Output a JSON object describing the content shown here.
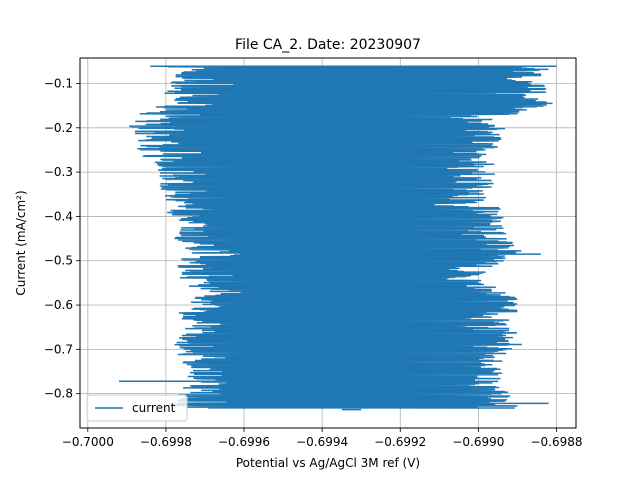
{
  "chart_data": {
    "type": "line",
    "title": "File CA_2. Date: 20230907",
    "xlabel": "Potential vs Ag/AgCl 3M ref (V)",
    "ylabel": "Current (mA/cm²)",
    "xlim": [
      -0.70002,
      -0.69875
    ],
    "ylim": [
      -0.8775,
      -0.0425
    ],
    "xticks": [
      -0.7,
      -0.6998,
      -0.6996,
      -0.6994,
      -0.6992,
      -0.699,
      -0.6988
    ],
    "xtick_labels": [
      "−0.7000",
      "−0.6998",
      "−0.6996",
      "−0.6994",
      "−0.6992",
      "−0.6990",
      "−0.6988"
    ],
    "yticks": [
      -0.1,
      -0.2,
      -0.3,
      -0.4,
      -0.5,
      -0.6,
      -0.7,
      -0.8
    ],
    "ytick_labels": [
      "−0.1",
      "−0.2",
      "−0.3",
      "−0.4",
      "−0.5",
      "−0.6",
      "−0.7",
      "−0.8"
    ],
    "grid": true,
    "legend_position": "lower-left",
    "series": [
      {
        "name": "current",
        "color": "#1f77b4",
        "envelope": [
          {
            "y": -0.061,
            "left": -0.69984,
            "right": -0.6988
          },
          {
            "y": -0.09,
            "left": -0.6998,
            "right": -0.69884
          },
          {
            "y": -0.12,
            "left": -0.69981,
            "right": -0.69882
          },
          {
            "y": -0.15,
            "left": -0.69982,
            "right": -0.69882
          },
          {
            "y": -0.18,
            "left": -0.6999,
            "right": -0.69895
          },
          {
            "y": -0.21,
            "left": -0.69989,
            "right": -0.69892
          },
          {
            "y": -0.24,
            "left": -0.69988,
            "right": -0.69895
          },
          {
            "y": -0.27,
            "left": -0.69986,
            "right": -0.69895
          },
          {
            "y": -0.3,
            "left": -0.69982,
            "right": -0.69895
          },
          {
            "y": -0.33,
            "left": -0.69982,
            "right": -0.69895
          },
          {
            "y": -0.36,
            "left": -0.6998,
            "right": -0.69898
          },
          {
            "y": -0.39,
            "left": -0.6998,
            "right": -0.69893
          },
          {
            "y": -0.42,
            "left": -0.69976,
            "right": -0.69894
          },
          {
            "y": -0.45,
            "left": -0.69978,
            "right": -0.69892
          },
          {
            "y": -0.48,
            "left": -0.69975,
            "right": -0.69888
          },
          {
            "y": -0.51,
            "left": -0.69977,
            "right": -0.69895
          },
          {
            "y": -0.54,
            "left": -0.69977,
            "right": -0.699
          },
          {
            "y": -0.57,
            "left": -0.69972,
            "right": -0.69892
          },
          {
            "y": -0.6,
            "left": -0.69978,
            "right": -0.69888
          },
          {
            "y": -0.63,
            "left": -0.69976,
            "right": -0.69892
          },
          {
            "y": -0.66,
            "left": -0.69975,
            "right": -0.6989
          },
          {
            "y": -0.69,
            "left": -0.6998,
            "right": -0.69888
          },
          {
            "y": -0.72,
            "left": -0.69976,
            "right": -0.69895
          },
          {
            "y": -0.75,
            "left": -0.69977,
            "right": -0.6989
          },
          {
            "y": -0.78,
            "left": -0.69975,
            "right": -0.69895
          },
          {
            "y": -0.81,
            "left": -0.69978,
            "right": -0.6989
          },
          {
            "y": -0.832,
            "left": -0.6998,
            "right": -0.6989
          }
        ],
        "outliers": [
          [
            -0.69992,
            -0.772
          ],
          [
            -0.6993,
            -0.836
          ],
          [
            -0.6988,
            -0.061
          ],
          [
            -0.69881,
            -0.145
          ],
          [
            -0.69989,
            -0.197
          ],
          [
            -0.69882,
            -0.822
          ],
          [
            -0.69884,
            -0.485
          ]
        ]
      }
    ]
  }
}
